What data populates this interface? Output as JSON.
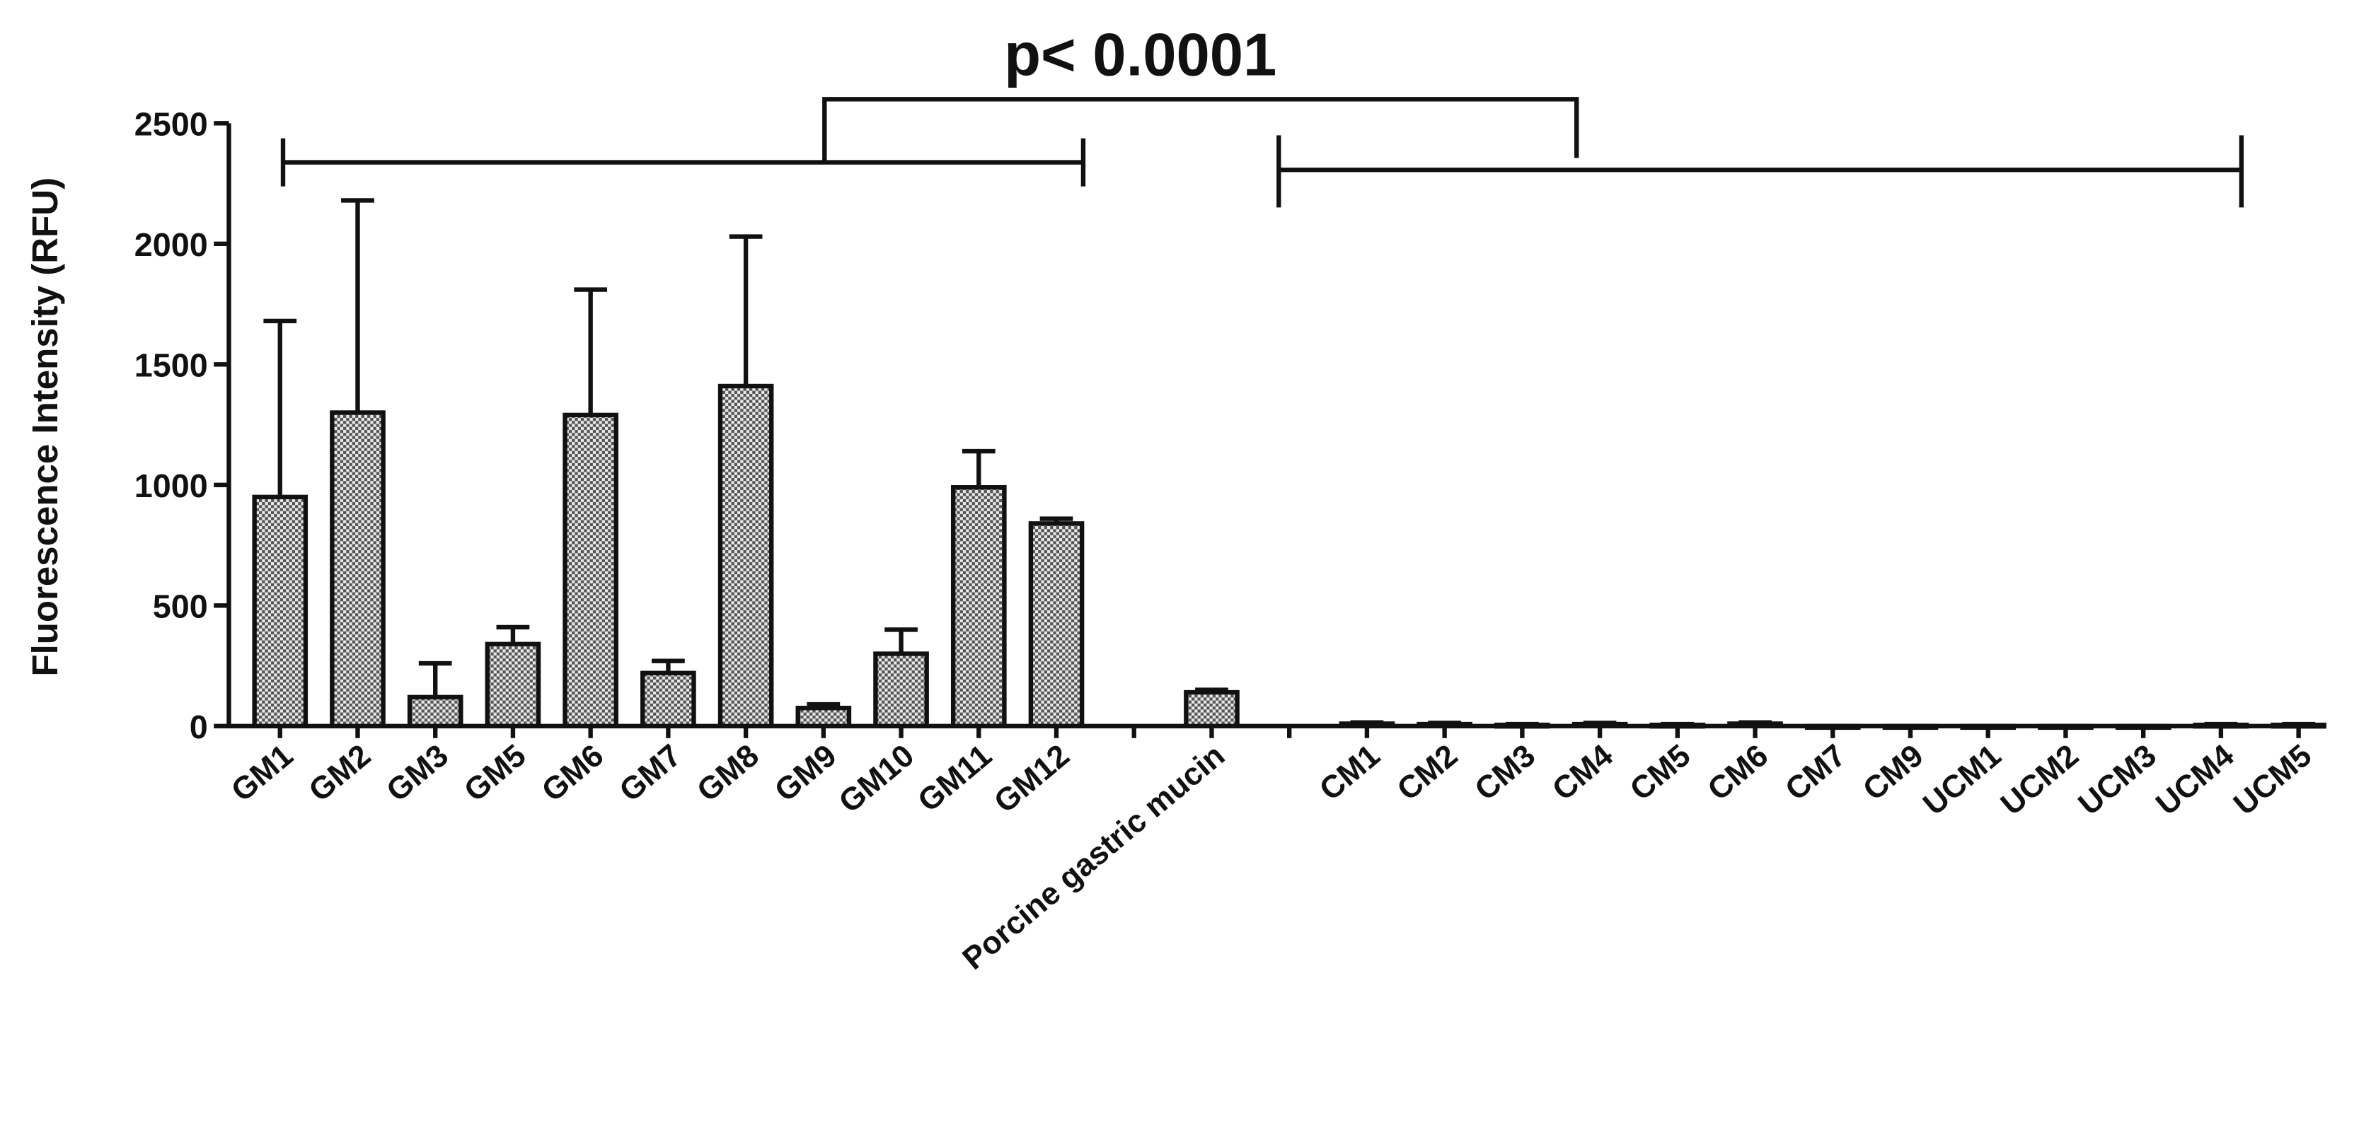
{
  "chart_data": {
    "type": "bar",
    "annotation": "p< 0.0001",
    "y_label": "Fluorescence Intensity (RFU)",
    "categories": [
      "GM1",
      "GM2",
      "GM3",
      "GM5",
      "GM6",
      "GM7",
      "GM8",
      "GM9",
      "GM10",
      "GM11",
      "GM12",
      null,
      "Porcine gastric mucin",
      null,
      "CM1",
      "CM2",
      "CM3",
      "CM4",
      "CM5",
      "CM6",
      "CM7",
      "CM9",
      "UCM1",
      "UCM2",
      "UCM3",
      "UCM4",
      "UCM5"
    ],
    "values": [
      950,
      1300,
      120,
      340,
      1290,
      220,
      1410,
      75,
      300,
      990,
      840,
      null,
      140,
      null,
      10,
      8,
      5,
      8,
      5,
      10,
      0,
      0,
      0,
      0,
      0,
      5,
      5
    ],
    "errors": [
      730,
      880,
      140,
      70,
      520,
      50,
      620,
      15,
      100,
      150,
      20,
      null,
      10,
      null,
      5,
      5,
      3,
      5,
      3,
      5,
      0,
      0,
      0,
      0,
      0,
      3,
      3
    ],
    "color": "#b8b8b8",
    "ylim": [
      0,
      2500
    ],
    "yticks": [
      0,
      500,
      1000,
      1500,
      2000,
      2500
    ]
  }
}
